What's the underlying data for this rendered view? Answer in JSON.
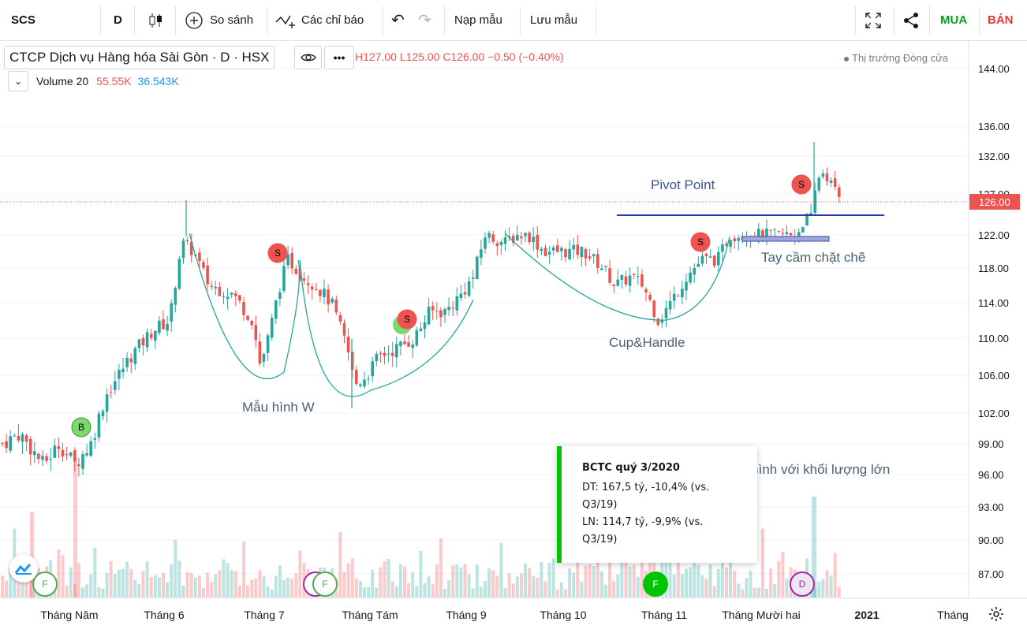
{
  "toolbar": {
    "symbol": "SCS",
    "interval": "D",
    "compare": "So sánh",
    "indicators": "Các chỉ báo",
    "load_template": "Nạp mẫu",
    "save_template": "Lưu mẫu",
    "buy": "MUA",
    "sell": "BÁN",
    "buy_color": "#00a31a",
    "sell_color": "#e53935"
  },
  "legend": {
    "title": "CTCP Dịch vụ Hàng hóa Sài Gòn · D · HSX",
    "ohlc": "H127.00 L125.00 C126.00 −0.50 (−0.40%)",
    "market_status": "Thị trường Đóng cửa",
    "volume_label": "Volume 20",
    "volume_value_1": "55.55K",
    "volume_value_2": "36.543K"
  },
  "tooltip": {
    "title": "BCTC quý 3/2020",
    "line1a": "DT: 167,5 tỷ, -10,4% (vs.",
    "line1b": "Q3/19)",
    "line2a": "LN: 114,7 tỷ, -9,9% (vs.",
    "line2b": "Q3/19)"
  },
  "chart_data": {
    "type": "candlestick",
    "x_labels": [
      "Tháng Năm",
      "Tháng 6",
      "Tháng 7",
      "Tháng Tám",
      "Tháng 9",
      "Tháng 10",
      "Tháng 11",
      "Tháng Mười hai",
      "2021",
      "Tháng"
    ],
    "y_ticks": [
      "144.00",
      "136.00",
      "132.00",
      "127.00",
      "122.00",
      "118.00",
      "114.00",
      "110.00",
      "106.00",
      "102.00",
      "99.00",
      "96.00",
      "93.00",
      "90.00",
      "87.00"
    ],
    "last_price": "126.00",
    "up_color": "#26a69a",
    "down_color": "#ef5350",
    "annotations": {
      "pivot": "Pivot Point",
      "handle": "Tay cầm chặt chẽ",
      "cup": "Cup&Handle",
      "w_pattern": "Mẫu hình W",
      "breakout": "u hình với khối lượng lớn"
    },
    "markers": [
      {
        "text": "B"
      },
      {
        "text": "S"
      },
      {
        "text": "S"
      },
      {
        "text": "S"
      },
      {
        "text": "S"
      },
      {
        "text": "F"
      },
      {
        "text": "D"
      },
      {
        "text": "F"
      },
      {
        "text": "F"
      },
      {
        "text": "D"
      }
    ]
  }
}
